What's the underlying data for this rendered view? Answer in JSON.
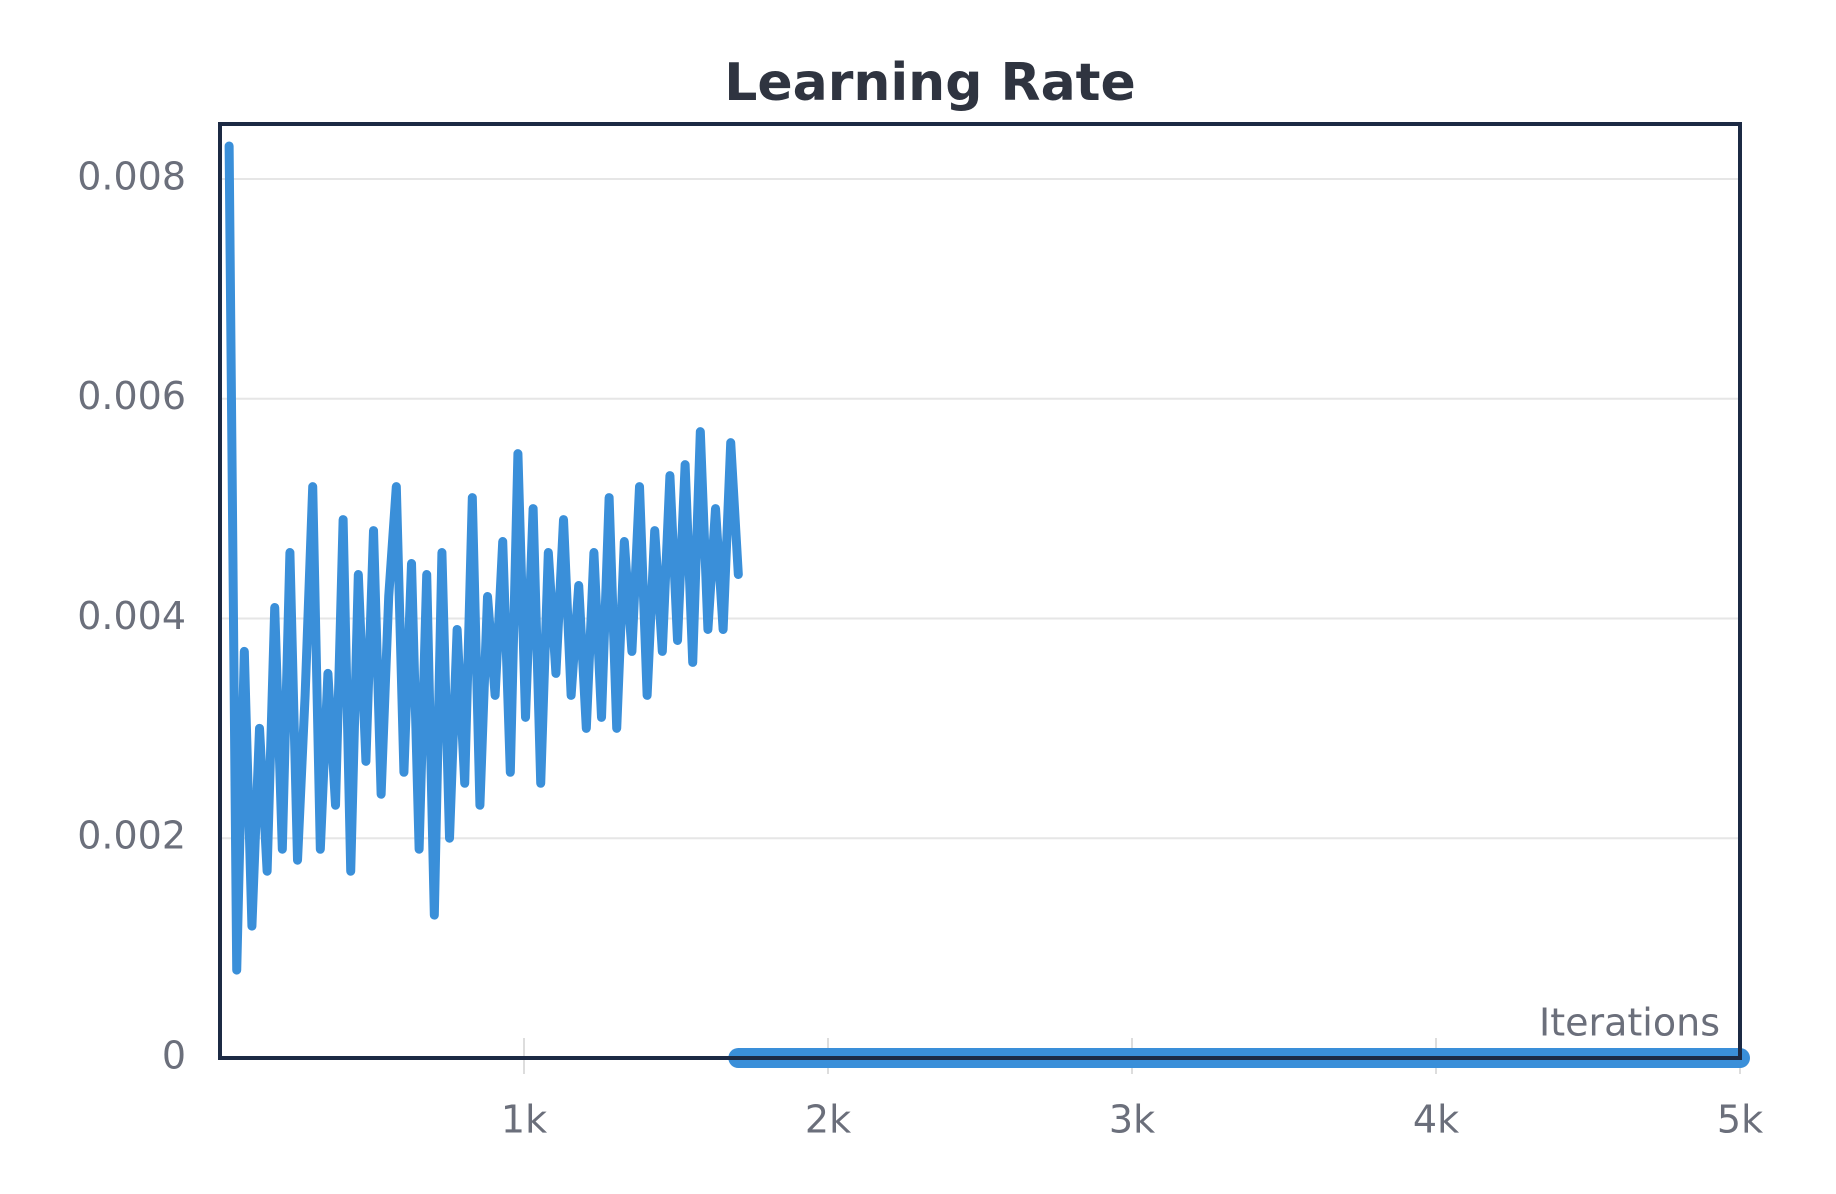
{
  "chart_data": {
    "type": "line",
    "title": "Learning Rate",
    "x_label": "Iterations",
    "xlim": [
      0,
      5000
    ],
    "xticks": [
      {
        "value": 1000,
        "label": "1k"
      },
      {
        "value": 2000,
        "label": "2k"
      },
      {
        "value": 3000,
        "label": "3k"
      },
      {
        "value": 4000,
        "label": "4k"
      },
      {
        "value": 5000,
        "label": "5k"
      }
    ],
    "ylim": [
      0,
      0.0085
    ],
    "yticks": [
      0,
      0.002,
      0.004,
      0.006,
      0.008
    ],
    "grid": true,
    "series": [
      {
        "color": "#3a8fd9",
        "line_width": 9,
        "x": [
          30,
          55,
          80,
          105,
          130,
          155,
          180,
          205,
          230,
          255,
          280,
          305,
          330,
          355,
          380,
          405,
          430,
          455,
          480,
          505,
          530,
          555,
          580,
          605,
          630,
          655,
          680,
          705,
          730,
          755,
          780,
          805,
          830,
          855,
          880,
          905,
          930,
          955,
          980,
          1005,
          1030,
          1055,
          1080,
          1105,
          1130,
          1155,
          1180,
          1205,
          1230,
          1255,
          1280,
          1305,
          1330,
          1355,
          1380,
          1405,
          1430,
          1455,
          1480,
          1505,
          1530,
          1555,
          1580,
          1605,
          1630,
          1655,
          1680,
          1705
        ],
        "values": [
          0.0083,
          0.0008,
          0.0037,
          0.0012,
          0.003,
          0.0017,
          0.0041,
          0.0019,
          0.0046,
          0.0018,
          0.0033,
          0.0052,
          0.0019,
          0.0035,
          0.0023,
          0.0049,
          0.0017,
          0.0044,
          0.0027,
          0.0048,
          0.0024,
          0.0042,
          0.0052,
          0.0026,
          0.0045,
          0.0019,
          0.0044,
          0.0013,
          0.0046,
          0.002,
          0.0039,
          0.0025,
          0.0051,
          0.0023,
          0.0042,
          0.0033,
          0.0047,
          0.0026,
          0.0055,
          0.0031,
          0.005,
          0.0025,
          0.0046,
          0.0035,
          0.0049,
          0.0033,
          0.0043,
          0.003,
          0.0046,
          0.0031,
          0.0051,
          0.003,
          0.0047,
          0.0037,
          0.0052,
          0.0033,
          0.0048,
          0.0037,
          0.0053,
          0.0038,
          0.0054,
          0.0036,
          0.0057,
          0.0039,
          0.005,
          0.0039,
          0.0056,
          0.0044
        ]
      },
      {
        "color": "#3a8fd9",
        "line_width": 20,
        "x": [
          1705,
          5000
        ],
        "values": [
          0,
          0
        ]
      }
    ]
  }
}
